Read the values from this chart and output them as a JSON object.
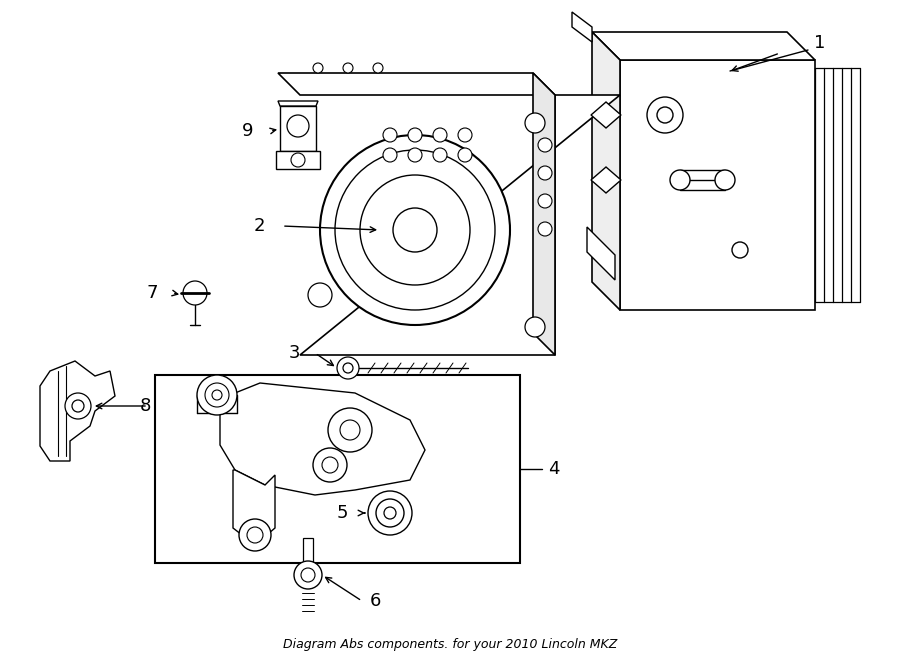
{
  "title": "Diagram Abs components. for your 2010 Lincoln MKZ",
  "bg": "#ffffff",
  "lc": "#000000",
  "fig_w": 9.0,
  "fig_h": 6.61,
  "dpi": 100
}
